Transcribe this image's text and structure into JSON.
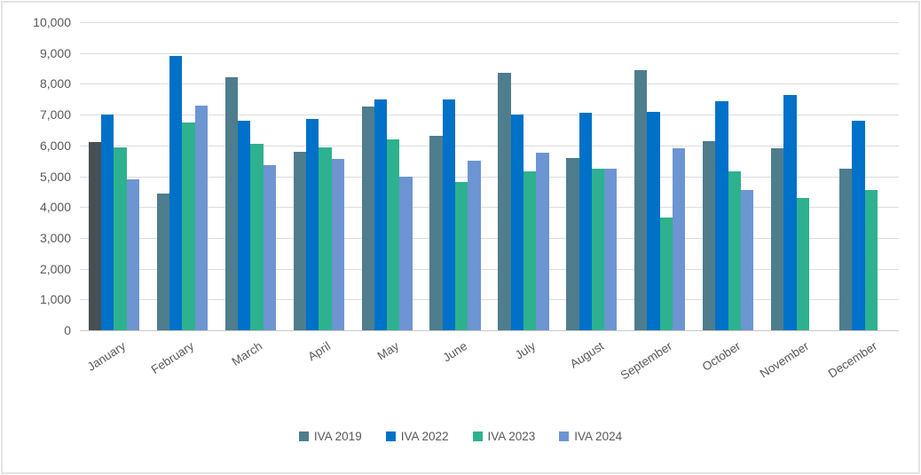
{
  "chart_data": {
    "type": "bar",
    "title": "",
    "xlabel": "",
    "ylabel": "",
    "categories": [
      "January",
      "February",
      "March",
      "April",
      "May",
      "June",
      "July",
      "August",
      "September",
      "October",
      "November",
      "December"
    ],
    "series": [
      {
        "name": "IVA 2019",
        "color": "#4E7D8D",
        "values": [
          6100,
          4450,
          8200,
          5800,
          7250,
          6300,
          8350,
          5600,
          8450,
          6150,
          5900,
          5250
        ]
      },
      {
        "name": "IVA 2022",
        "color": "#0071C8",
        "values": [
          7000,
          8900,
          6800,
          6850,
          7500,
          7500,
          7000,
          7050,
          7100,
          7450,
          7650,
          6800
        ]
      },
      {
        "name": "IVA 2023",
        "color": "#2EB18E",
        "values": [
          5950,
          6750,
          6050,
          5950,
          6200,
          4800,
          5150,
          5250,
          3650,
          5150,
          4300,
          4550
        ]
      },
      {
        "name": "IVA 2024",
        "color": "#6C95D2",
        "values": [
          4900,
          7300,
          5350,
          5550,
          5000,
          5500,
          5750,
          5250,
          5900,
          4550,
          null,
          null
        ]
      }
    ],
    "highlight_point": {
      "series_index": 0,
      "category_index": 0,
      "color": "#474F52"
    },
    "ylim": [
      0,
      10000
    ],
    "ytick_interval": 1000,
    "ytick_labels": [
      "0",
      "1,000",
      "2,000",
      "3,000",
      "4,000",
      "5,000",
      "6,000",
      "7,000",
      "8,000",
      "9,000",
      "10,000"
    ],
    "grid": true,
    "legend_position": "bottom",
    "colors": {
      "grid": "#DCDCDC",
      "axis_line": "#C9C9C9",
      "tick_text": "#595959",
      "background": "#FFFFFF",
      "frame_border": "#E3E3E3"
    }
  }
}
